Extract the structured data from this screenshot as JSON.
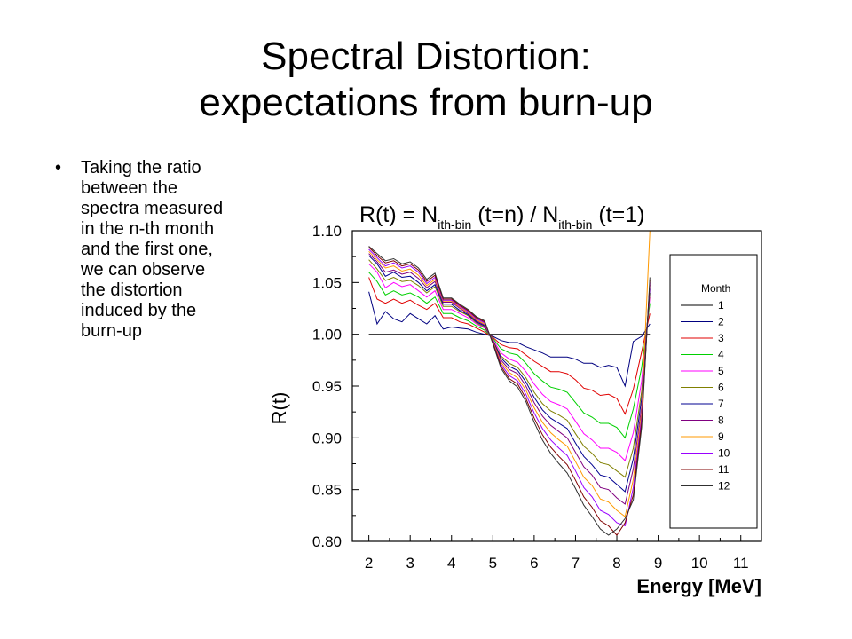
{
  "slide": {
    "title_line1": "Spectral Distortion:",
    "title_line2": "expectations from burn-up",
    "bullet_symbol": "•",
    "bullet_text": "Taking the ratio between the spectra measured in the n-th month and the first one, we can observe the distortion induced by the burn-up"
  },
  "chart_data": {
    "type": "line",
    "title": {
      "p1": "R(t) = N",
      "s1": "ith-bin",
      "p2": " (t=n) / N",
      "s2": "ith-bin",
      "p3": " (t=1)"
    },
    "xlabel": "Energy [MeV]",
    "ylabel": "R(t)",
    "xlim": [
      1.6,
      11.5
    ],
    "ylim": [
      0.8,
      1.1
    ],
    "xticks": [
      2,
      3,
      4,
      5,
      6,
      7,
      8,
      9,
      10,
      11
    ],
    "yticks": [
      0.8,
      0.85,
      0.9,
      0.95,
      1.0,
      1.05,
      1.1
    ],
    "ytick_labels": [
      "0.80",
      "0.85",
      "0.90",
      "0.95",
      "1.00",
      "1.05",
      "1.10"
    ],
    "legend": {
      "title": "Month",
      "placement": "right"
    },
    "x": [
      2.0,
      2.2,
      2.4,
      2.6,
      2.8,
      3.0,
      3.2,
      3.4,
      3.6,
      3.8,
      4.0,
      4.2,
      4.4,
      4.6,
      4.8,
      5.0,
      5.2,
      5.4,
      5.6,
      5.8,
      6.0,
      6.2,
      6.4,
      6.6,
      6.8,
      7.0,
      7.2,
      7.4,
      7.6,
      7.8,
      8.0,
      8.2,
      8.4,
      8.6,
      8.8
    ],
    "series": [
      {
        "name": "1",
        "color": "#000000",
        "values": [
          1.0,
          1.0,
          1.0,
          1.0,
          1.0,
          1.0,
          1.0,
          1.0,
          1.0,
          1.0,
          1.0,
          1.0,
          1.0,
          1.0,
          1.0,
          1.0,
          1.0,
          1.0,
          1.0,
          1.0,
          1.0,
          1.0,
          1.0,
          1.0,
          1.0,
          1.0,
          1.0,
          1.0,
          1.0,
          1.0,
          1.0,
          1.0,
          1.0,
          1.0,
          1.0
        ]
      },
      {
        "name": "2",
        "color": "#000080",
        "values": [
          1.041,
          1.01,
          1.022,
          1.015,
          1.012,
          1.02,
          1.015,
          1.01,
          1.018,
          1.005,
          1.007,
          1.006,
          1.005,
          1.002,
          1.0,
          0.998,
          0.994,
          0.992,
          0.992,
          0.988,
          0.985,
          0.982,
          0.978,
          0.978,
          0.978,
          0.976,
          0.972,
          0.972,
          0.968,
          0.97,
          0.968,
          0.95,
          0.993,
          0.998,
          1.01
        ]
      },
      {
        "name": "3",
        "color": "#e00000",
        "values": [
          1.055,
          1.034,
          1.03,
          1.034,
          1.03,
          1.033,
          1.028,
          1.024,
          1.03,
          1.016,
          1.016,
          1.012,
          1.01,
          1.006,
          1.002,
          0.997,
          0.99,
          0.987,
          0.986,
          0.98,
          0.974,
          0.969,
          0.964,
          0.964,
          0.962,
          0.956,
          0.948,
          0.946,
          0.941,
          0.942,
          0.938,
          0.923,
          0.947,
          0.983,
          1.02
        ]
      },
      {
        "name": "4",
        "color": "#00d000",
        "values": [
          1.06,
          1.051,
          1.038,
          1.042,
          1.038,
          1.04,
          1.036,
          1.03,
          1.036,
          1.02,
          1.02,
          1.016,
          1.013,
          1.008,
          1.004,
          0.996,
          0.986,
          0.982,
          0.98,
          0.972,
          0.962,
          0.955,
          0.949,
          0.947,
          0.944,
          0.934,
          0.924,
          0.92,
          0.914,
          0.914,
          0.91,
          0.9,
          0.928,
          0.968,
          1.03
        ]
      },
      {
        "name": "5",
        "color": "#ff00ff",
        "values": [
          1.068,
          1.06,
          1.045,
          1.05,
          1.046,
          1.048,
          1.042,
          1.036,
          1.042,
          1.024,
          1.024,
          1.02,
          1.016,
          1.01,
          1.006,
          0.995,
          0.982,
          0.976,
          0.973,
          0.964,
          0.952,
          0.942,
          0.935,
          0.932,
          0.928,
          0.916,
          0.904,
          0.898,
          0.89,
          0.89,
          0.886,
          0.878,
          0.905,
          0.955,
          1.036
        ]
      },
      {
        "name": "6",
        "color": "#808000",
        "values": [
          1.072,
          1.063,
          1.052,
          1.055,
          1.051,
          1.052,
          1.047,
          1.04,
          1.046,
          1.027,
          1.027,
          1.022,
          1.018,
          1.011,
          1.007,
          0.994,
          0.979,
          0.972,
          0.968,
          0.958,
          0.944,
          0.933,
          0.926,
          0.922,
          0.917,
          0.904,
          0.892,
          0.885,
          0.876,
          0.874,
          0.868,
          0.862,
          0.89,
          0.945,
          1.04
        ]
      },
      {
        "name": "7",
        "color": "#000090",
        "values": [
          1.076,
          1.068,
          1.056,
          1.06,
          1.055,
          1.056,
          1.05,
          1.042,
          1.048,
          1.029,
          1.029,
          1.023,
          1.019,
          1.012,
          1.008,
          0.994,
          0.977,
          0.969,
          0.965,
          0.954,
          0.939,
          0.927,
          0.919,
          0.914,
          0.909,
          0.895,
          0.882,
          0.874,
          0.864,
          0.862,
          0.855,
          0.848,
          0.88,
          0.938,
          1.044
        ]
      },
      {
        "name": "8",
        "color": "#800080",
        "values": [
          1.078,
          1.07,
          1.06,
          1.062,
          1.058,
          1.06,
          1.054,
          1.045,
          1.051,
          1.031,
          1.031,
          1.025,
          1.02,
          1.013,
          1.009,
          0.993,
          0.975,
          0.966,
          0.962,
          0.95,
          0.934,
          0.921,
          0.912,
          0.906,
          0.9,
          0.886,
          0.872,
          0.864,
          0.852,
          0.85,
          0.842,
          0.836,
          0.87,
          0.93,
          1.048
        ]
      },
      {
        "name": "9",
        "color": "#ff9900",
        "values": [
          1.08,
          1.072,
          1.064,
          1.066,
          1.061,
          1.063,
          1.057,
          1.047,
          1.053,
          1.032,
          1.032,
          1.026,
          1.021,
          1.014,
          1.01,
          0.993,
          0.973,
          0.963,
          0.958,
          0.946,
          0.929,
          0.915,
          0.905,
          0.898,
          0.892,
          0.877,
          0.862,
          0.854,
          0.841,
          0.838,
          0.83,
          0.824,
          0.86,
          0.925,
          1.1
        ]
      },
      {
        "name": "10",
        "color": "#9900ff",
        "values": [
          1.082,
          1.074,
          1.066,
          1.069,
          1.064,
          1.066,
          1.06,
          1.049,
          1.055,
          1.033,
          1.033,
          1.027,
          1.022,
          1.015,
          1.011,
          0.992,
          0.971,
          0.96,
          0.955,
          0.942,
          0.924,
          0.909,
          0.898,
          0.89,
          0.883,
          0.868,
          0.852,
          0.843,
          0.83,
          0.826,
          0.818,
          0.815,
          0.852,
          0.92,
          1.05
        ]
      },
      {
        "name": "11",
        "color": "#800000",
        "values": [
          1.084,
          1.076,
          1.069,
          1.071,
          1.066,
          1.068,
          1.062,
          1.051,
          1.057,
          1.034,
          1.034,
          1.028,
          1.023,
          1.016,
          1.012,
          0.992,
          0.969,
          0.957,
          0.952,
          0.938,
          0.919,
          0.903,
          0.891,
          0.882,
          0.874,
          0.859,
          0.843,
          0.833,
          0.82,
          0.815,
          0.806,
          0.818,
          0.845,
          0.915,
          1.052
        ]
      },
      {
        "name": "12",
        "color": "#303030",
        "values": [
          1.085,
          1.078,
          1.071,
          1.073,
          1.068,
          1.07,
          1.064,
          1.053,
          1.059,
          1.035,
          1.035,
          1.029,
          1.024,
          1.017,
          1.013,
          0.991,
          0.967,
          0.955,
          0.949,
          0.935,
          0.915,
          0.898,
          0.885,
          0.875,
          0.866,
          0.851,
          0.835,
          0.824,
          0.812,
          0.806,
          0.812,
          0.822,
          0.84,
          0.91,
          1.055
        ]
      }
    ]
  }
}
